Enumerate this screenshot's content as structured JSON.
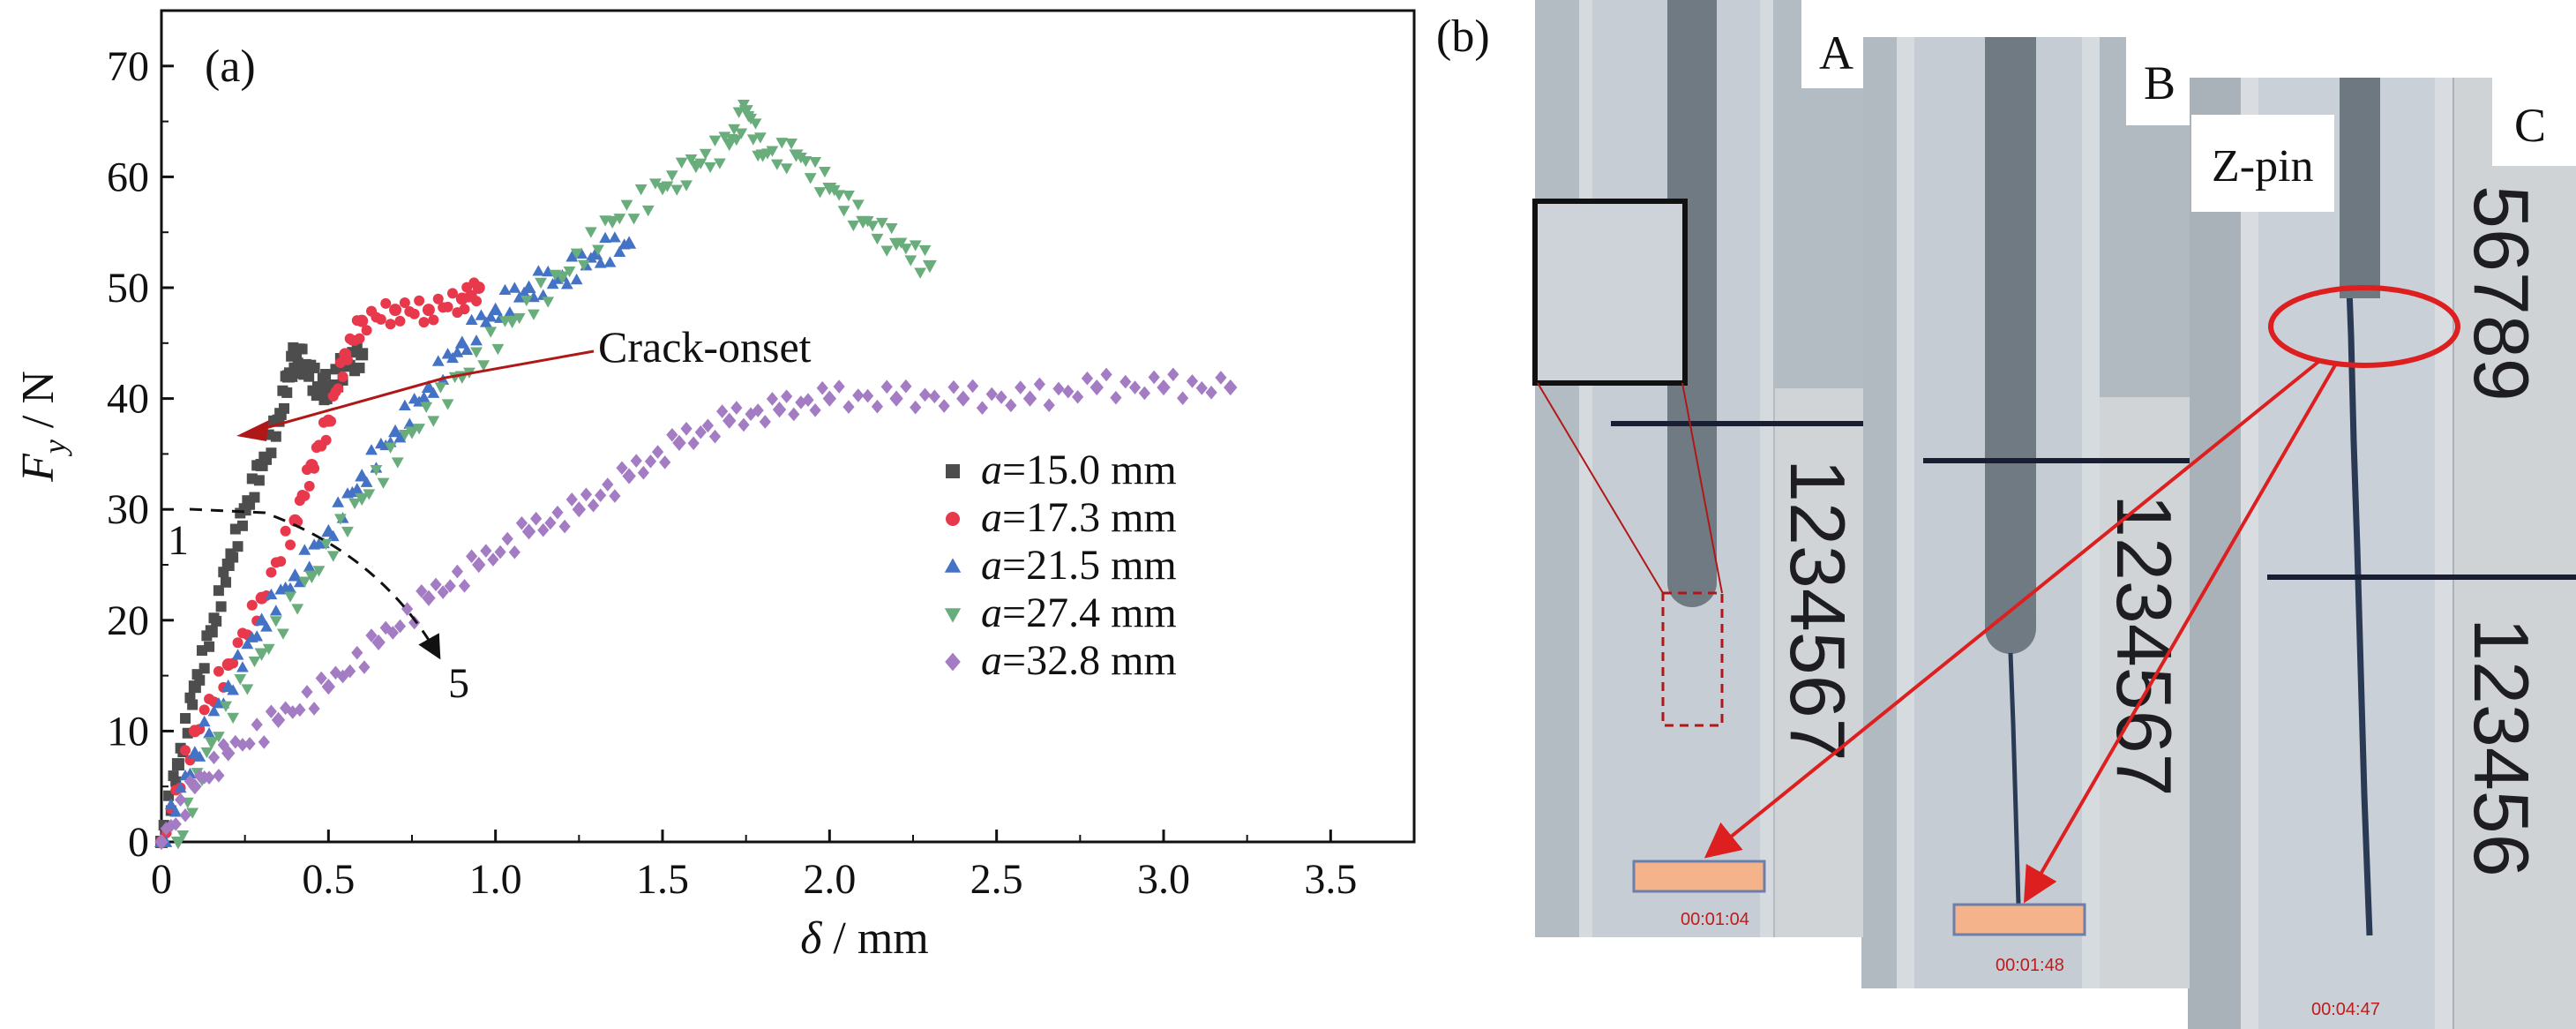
{
  "panel_a": {
    "label": "(a)",
    "annotation": "Crack-onset",
    "trend_start": "1",
    "trend_end": "5"
  },
  "panel_b": {
    "label": "(b)",
    "photos": [
      {
        "label": "A",
        "timestamp": "00:01:04",
        "ruler_digits": "1234567"
      },
      {
        "label": "B",
        "timestamp": "00:01:48",
        "ruler_digits": "1234567"
      },
      {
        "label": "C",
        "timestamp": "00:04:47",
        "ruler_digits": "123456",
        "ruler_top_digits": "56789",
        "callout": "Z-pin"
      }
    ]
  },
  "colors": {
    "a15": "#4d4d4d",
    "a17": "#e8384c",
    "a21": "#4472c4",
    "a27": "#6aad7c",
    "a32": "#a47cc4",
    "annotation_red": "#b01818",
    "arrow_red": "#dd1f1f",
    "marker_fill": "#f4b38a"
  },
  "chart_data": {
    "type": "scatter",
    "title": "",
    "xlabel": "δ / mm",
    "ylabel_main": "F",
    "ylabel_sub": "y",
    "ylabel_unit": " / N",
    "xlim": [
      0,
      3.75
    ],
    "ylim": [
      0,
      75
    ],
    "xticks": [
      0,
      0.5,
      1.0,
      1.5,
      2.0,
      2.5,
      3.0,
      3.5
    ],
    "xtick_labels": [
      "0",
      "0.5",
      "1.0",
      "1.5",
      "2.0",
      "2.5",
      "3.0",
      "3.5"
    ],
    "yticks": [
      0,
      10,
      20,
      30,
      40,
      50,
      60,
      70
    ],
    "ytick_labels": [
      "0",
      "10",
      "20",
      "30",
      "40",
      "50",
      "60",
      "70"
    ],
    "grid": false,
    "legend_position": "center-right",
    "series": [
      {
        "name_italic": "a",
        "name_rest": "=15.0 mm",
        "marker": "square",
        "color": "#4d4d4d",
        "points": [
          [
            0,
            0
          ],
          [
            0.05,
            7
          ],
          [
            0.1,
            14
          ],
          [
            0.15,
            19
          ],
          [
            0.2,
            25
          ],
          [
            0.25,
            30
          ],
          [
            0.3,
            34
          ],
          [
            0.35,
            38
          ],
          [
            0.38,
            42
          ],
          [
            0.4,
            44
          ],
          [
            0.43,
            43
          ],
          [
            0.47,
            41
          ],
          [
            0.5,
            41
          ],
          [
            0.55,
            43
          ],
          [
            0.6,
            44
          ]
        ]
      },
      {
        "name_italic": "a",
        "name_rest": "=17.3 mm",
        "marker": "circle",
        "color": "#e8384c",
        "points": [
          [
            0,
            0
          ],
          [
            0.1,
            10
          ],
          [
            0.2,
            16
          ],
          [
            0.3,
            22
          ],
          [
            0.4,
            29
          ],
          [
            0.45,
            34
          ],
          [
            0.5,
            38
          ],
          [
            0.55,
            44
          ],
          [
            0.6,
            47
          ],
          [
            0.7,
            48
          ],
          [
            0.8,
            48
          ],
          [
            0.9,
            49
          ],
          [
            0.95,
            50
          ]
        ]
      },
      {
        "name_italic": "a",
        "name_rest": "=21.5 mm",
        "marker": "triangle-up",
        "color": "#4472c4",
        "points": [
          [
            0,
            0
          ],
          [
            0.1,
            8
          ],
          [
            0.2,
            14
          ],
          [
            0.3,
            20
          ],
          [
            0.4,
            24
          ],
          [
            0.5,
            28
          ],
          [
            0.6,
            33
          ],
          [
            0.7,
            37
          ],
          [
            0.8,
            41
          ],
          [
            0.9,
            45
          ],
          [
            1.0,
            48
          ],
          [
            1.1,
            50
          ],
          [
            1.2,
            51
          ],
          [
            1.3,
            53
          ],
          [
            1.4,
            54
          ]
        ]
      },
      {
        "name_italic": "a",
        "name_rest": "=27.4 mm",
        "marker": "triangle-down",
        "color": "#6aad7c",
        "points": [
          [
            0.05,
            0
          ],
          [
            0.15,
            9
          ],
          [
            0.3,
            17
          ],
          [
            0.45,
            24
          ],
          [
            0.6,
            31
          ],
          [
            0.75,
            37
          ],
          [
            0.9,
            42
          ],
          [
            1.05,
            47
          ],
          [
            1.2,
            51
          ],
          [
            1.35,
            56
          ],
          [
            1.5,
            59
          ],
          [
            1.6,
            61
          ],
          [
            1.7,
            63
          ],
          [
            1.75,
            66
          ],
          [
            1.8,
            62
          ],
          [
            1.9,
            62
          ],
          [
            2.0,
            59
          ],
          [
            2.1,
            56
          ],
          [
            2.2,
            54
          ],
          [
            2.3,
            52
          ]
        ]
      },
      {
        "name_italic": "a",
        "name_rest": "=32.8 mm",
        "marker": "diamond",
        "color": "#a47cc4",
        "points": [
          [
            0,
            0
          ],
          [
            0.1,
            5
          ],
          [
            0.2,
            8
          ],
          [
            0.35,
            11
          ],
          [
            0.5,
            14
          ],
          [
            0.65,
            18
          ],
          [
            0.8,
            22
          ],
          [
            0.95,
            25
          ],
          [
            1.1,
            28
          ],
          [
            1.25,
            30
          ],
          [
            1.4,
            33
          ],
          [
            1.55,
            36
          ],
          [
            1.7,
            38
          ],
          [
            1.85,
            39
          ],
          [
            2.0,
            40
          ],
          [
            2.2,
            40
          ],
          [
            2.4,
            40
          ],
          [
            2.6,
            40
          ],
          [
            2.8,
            41
          ],
          [
            3.0,
            41
          ],
          [
            3.2,
            41
          ]
        ]
      }
    ]
  }
}
